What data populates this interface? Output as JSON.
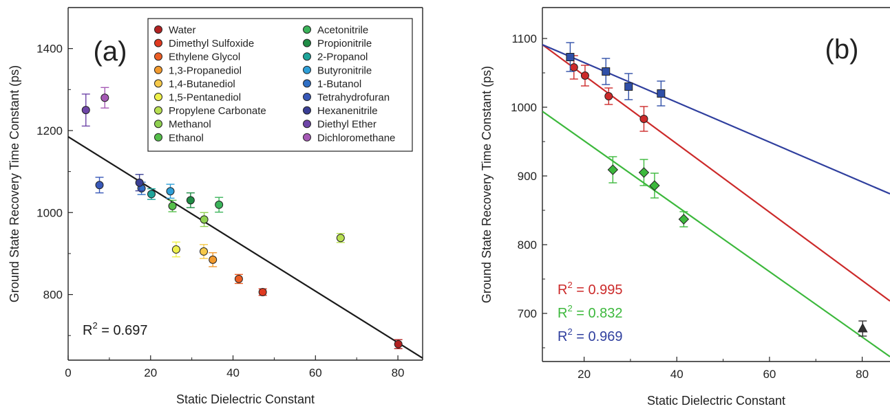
{
  "chart_data": [
    {
      "type": "scatter",
      "panel_label": "(a)",
      "xlabel": "Static Dielectric Constant",
      "ylabel": "Ground State Recovery Time Constant (ps)",
      "xlim": [
        0,
        86
      ],
      "ylim": [
        640,
        1500
      ],
      "xticks": [
        0,
        20,
        40,
        60,
        80
      ],
      "yticks": [
        800,
        1000,
        1200,
        1400
      ],
      "grid": false,
      "legend_position": "top-right",
      "fit_lines": [
        {
          "color": "#1a1a1a",
          "points": [
            [
              0,
              1185
            ],
            [
              86,
              645
            ]
          ]
        }
      ],
      "annotations": [
        {
          "base": "R",
          "sup": "2",
          "rest": " = 0.697",
          "color": "#1a1a1a"
        }
      ],
      "series": [
        {
          "name": "Water",
          "color": "#b22222",
          "x": 80.1,
          "y": 679,
          "err": 11
        },
        {
          "name": "Dimethyl Sulfoxide",
          "color": "#e03a20",
          "x": 47.2,
          "y": 806,
          "err": 8
        },
        {
          "name": "Ethylene Glycol",
          "color": "#ec5e25",
          "x": 41.4,
          "y": 838,
          "err": 11
        },
        {
          "name": "1,3-Propanediol",
          "color": "#f29a2e",
          "x": 35.1,
          "y": 885,
          "err": 17
        },
        {
          "name": "1,4-Butanediol",
          "color": "#f6c94a",
          "x": 32.9,
          "y": 905,
          "err": 17
        },
        {
          "name": "1,5-Pentanediol",
          "color": "#eef04a",
          "x": 26.2,
          "y": 910,
          "err": 18
        },
        {
          "name": "Propylene Carbonate",
          "color": "#b8df52",
          "x": 66.1,
          "y": 938,
          "err": 11
        },
        {
          "name": "Methanol",
          "color": "#8fd050",
          "x": 33.0,
          "y": 983,
          "err": 17
        },
        {
          "name": "Ethanol",
          "color": "#55be4a",
          "x": 25.3,
          "y": 1016,
          "err": 14
        },
        {
          "name": "Acetonitrile",
          "color": "#3bb35a",
          "x": 36.6,
          "y": 1019,
          "err": 18
        },
        {
          "name": "Propionitrile",
          "color": "#1f8c45",
          "x": 29.7,
          "y": 1030,
          "err": 18
        },
        {
          "name": "2-Propanol",
          "color": "#1ea49a",
          "x": 20.2,
          "y": 1045,
          "err": 13
        },
        {
          "name": "Butyronitrile",
          "color": "#2e9fd8",
          "x": 24.8,
          "y": 1052,
          "err": 17
        },
        {
          "name": "1-Butanol",
          "color": "#2f6fc5",
          "x": 17.8,
          "y": 1059,
          "err": 15
        },
        {
          "name": "Tetrahydrofuran",
          "color": "#3858b8",
          "x": 7.6,
          "y": 1067,
          "err": 19
        },
        {
          "name": "Hexanenitrile",
          "color": "#3a3f95",
          "x": 17.3,
          "y": 1073,
          "err": 20
        },
        {
          "name": "Diethyl Ether",
          "color": "#6e45a8",
          "x": 4.3,
          "y": 1250,
          "err": 39
        },
        {
          "name": "Dichloromethane",
          "color": "#a559b5",
          "x": 8.9,
          "y": 1280,
          "err": 25
        }
      ]
    },
    {
      "type": "scatter",
      "panel_label": "(b)",
      "xlabel": "Static Dielectric Constant",
      "ylabel": "Ground State Recovery Time Constant (ps)",
      "xlim": [
        11,
        86
      ],
      "ylim": [
        630,
        1145
      ],
      "xticks": [
        20,
        40,
        60,
        80
      ],
      "yticks": [
        700,
        800,
        900,
        1000,
        1100
      ],
      "grid": false,
      "fit_lines": [
        {
          "color": "#cc2a2a",
          "points": [
            [
              11,
              1091
            ],
            [
              86,
              718
            ]
          ]
        },
        {
          "color": "#3cb83c",
          "points": [
            [
              11,
              994
            ],
            [
              86,
              637
            ]
          ]
        },
        {
          "color": "#2f3f9e",
          "points": [
            [
              11,
              1091
            ],
            [
              86,
              874
            ]
          ]
        }
      ],
      "annotations": [
        {
          "base": "R",
          "sup": "2",
          "rest": " = 0.995",
          "color": "#cc2a2a"
        },
        {
          "base": "R",
          "sup": "2",
          "rest": " = 0.832",
          "color": "#3cb83c"
        },
        {
          "base": "R",
          "sup": "2",
          "rest": " = 0.969",
          "color": "#2f3f9e"
        }
      ],
      "series": [
        {
          "color": "#cc2a2a",
          "marker": "circle",
          "x": [
            17.8,
            20.2,
            25.3,
            32.9
          ],
          "y": [
            1058,
            1046,
            1016,
            983
          ],
          "err": [
            17,
            15,
            12,
            18
          ]
        },
        {
          "color": "#3cb83c",
          "marker": "diamond",
          "x": [
            26.2,
            32.9,
            35.2,
            41.5
          ],
          "y": [
            909,
            905,
            886,
            837
          ],
          "err": [
            19,
            19,
            18,
            11
          ]
        },
        {
          "color": "#2f4fa8",
          "marker": "square",
          "x": [
            17.0,
            24.7,
            29.6,
            36.6
          ],
          "y": [
            1073,
            1052,
            1030,
            1020
          ],
          "err": [
            21,
            19,
            19,
            18
          ]
        },
        {
          "color": "#333333",
          "marker": "triangle",
          "x": [
            80.1
          ],
          "y": [
            678
          ],
          "err": [
            11
          ]
        }
      ]
    }
  ]
}
